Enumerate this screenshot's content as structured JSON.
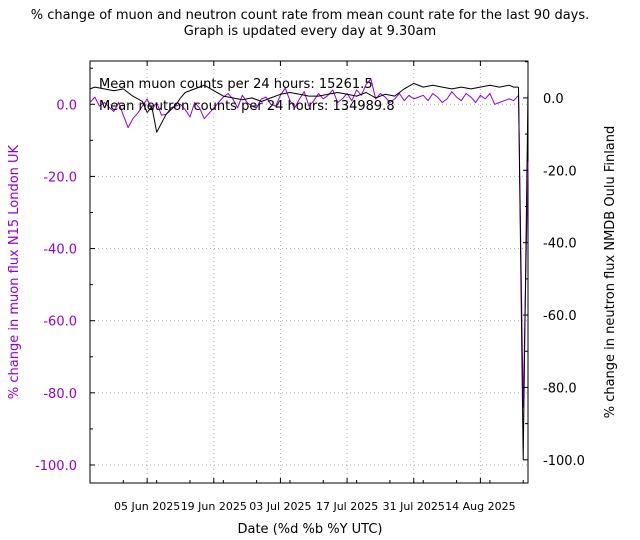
{
  "chart_data": {
    "type": "line",
    "title": "% change of muon and neutron count rate from mean count rate for the last 90 days.",
    "subtitle": "Graph is updated every day at 9.30am",
    "xlabel": "Date (%d %b %Y UTC)",
    "ylabel_left": "% change in muon flux N15 London UK",
    "ylabel_right": "% change in neutron flux NMDB Oulu Finland",
    "x_ticks": [
      "05 Jun 2025",
      "19 Jun 2025",
      "03 Jul 2025",
      "17 Jul 2025",
      "31 Jul 2025",
      "14 Aug 2025"
    ],
    "x_range": [
      "2025-05-24",
      "2025-08-24"
    ],
    "ylim_left": [
      -105,
      12
    ],
    "yticks_left": [
      "0.0",
      "-20.0",
      "-40.0",
      "-60.0",
      "-80.0",
      "-100.0"
    ],
    "ylim_right": [
      -106.4,
      10.2
    ],
    "yticks_right": [
      "0.0",
      "-20.0",
      "-40.0",
      "-60.0",
      "-80.0",
      "-100.0"
    ],
    "grid": true,
    "annotations": [
      "Mean muon counts per 24 hours: 15261.5",
      "Mean neutron counts per 24 hours: 134989.8"
    ],
    "colors": {
      "muon": "#9400d3",
      "neutron": "#000000",
      "grid": "#b0b0b0"
    },
    "series": [
      {
        "axis": "left",
        "color": "#9400d3",
        "x": [
          "2025-05-24",
          "2025-05-25",
          "2025-05-26",
          "2025-05-27",
          "2025-05-28",
          "2025-05-29",
          "2025-05-30",
          "2025-05-31",
          "2025-06-01",
          "2025-06-02",
          "2025-06-03",
          "2025-06-04",
          "2025-06-05",
          "2025-06-06",
          "2025-06-07",
          "2025-06-08",
          "2025-06-09",
          "2025-06-10",
          "2025-06-11",
          "2025-06-12",
          "2025-06-13",
          "2025-06-14",
          "2025-06-15",
          "2025-06-16",
          "2025-06-17",
          "2025-06-18",
          "2025-06-19",
          "2025-06-20",
          "2025-06-21",
          "2025-06-22",
          "2025-06-23",
          "2025-06-24",
          "2025-06-25",
          "2025-06-26",
          "2025-06-27",
          "2025-06-28",
          "2025-06-29",
          "2025-06-30",
          "2025-07-01",
          "2025-07-02",
          "2025-07-03",
          "2025-07-04",
          "2025-07-05",
          "2025-07-06",
          "2025-07-07",
          "2025-07-08",
          "2025-07-09",
          "2025-07-10",
          "2025-07-11",
          "2025-07-12",
          "2025-07-13",
          "2025-07-14",
          "2025-07-15",
          "2025-07-16",
          "2025-07-17",
          "2025-07-18",
          "2025-07-19",
          "2025-07-20",
          "2025-07-21",
          "2025-07-22",
          "2025-07-23",
          "2025-07-24",
          "2025-07-25",
          "2025-07-26",
          "2025-07-27",
          "2025-07-28",
          "2025-07-29",
          "2025-07-30",
          "2025-07-31",
          "2025-08-01",
          "2025-08-02",
          "2025-08-03",
          "2025-08-04",
          "2025-08-05",
          "2025-08-06",
          "2025-08-07",
          "2025-08-08",
          "2025-08-09",
          "2025-08-10",
          "2025-08-11",
          "2025-08-12",
          "2025-08-13",
          "2025-08-14",
          "2025-08-15",
          "2025-08-16",
          "2025-08-17",
          "2025-08-18",
          "2025-08-19",
          "2025-08-20",
          "2025-08-21",
          "2025-08-22"
        ],
        "values": [
          0.5,
          2.0,
          -0.5,
          0.5,
          -0.8,
          -2.0,
          0.5,
          -3.0,
          -6.5,
          -4.0,
          -2.5,
          -0.5,
          1.5,
          -1.5,
          0.5,
          -3.0,
          -2.8,
          -1.0,
          -0.5,
          0.0,
          -1.5,
          -3.5,
          0.5,
          -1.0,
          -4.0,
          -2.5,
          -1.0,
          0.5,
          2.0,
          3.0,
          1.5,
          -1.0,
          2.5,
          0.5,
          -0.5,
          -1.0,
          1.5,
          2.0,
          0.0,
          -0.5,
          2.5,
          4.5,
          1.0,
          -1.0,
          1.5,
          3.5,
          -0.5,
          1.0,
          3.0,
          1.5,
          2.5,
          4.0,
          0.5,
          1.5,
          3.0,
          1.0,
          4.0,
          2.5,
          5.5,
          7.0,
          1.5,
          3.0,
          2.0,
          0.5,
          1.5,
          3.0,
          1.0,
          2.5,
          1.5,
          2.0,
          2.5,
          1.0,
          3.0,
          2.0,
          0.5,
          1.5,
          3.5,
          2.0,
          1.0,
          3.0,
          2.0,
          0.5,
          2.5,
          1.5,
          3.0,
          0.0,
          0.5,
          1.0,
          1.5,
          1.0,
          2.5
        ]
      },
      {
        "axis": "left",
        "color": "#9400d3",
        "x": [
          "2025-08-22",
          "2025-08-23",
          "2025-08-24"
        ],
        "values": [
          3.0,
          -84.0,
          -16.0
        ]
      },
      {
        "axis": "right",
        "color": "#000000",
        "x": [
          "2025-05-24",
          "2025-05-25",
          "2025-05-27",
          "2025-05-29",
          "2025-05-31",
          "2025-06-02",
          "2025-06-04",
          "2025-06-05",
          "2025-06-06",
          "2025-06-07",
          "2025-06-08",
          "2025-06-09",
          "2025-06-11",
          "2025-06-12",
          "2025-06-13",
          "2025-06-15",
          "2025-06-17",
          "2025-06-19",
          "2025-06-21",
          "2025-06-23",
          "2025-06-25",
          "2025-06-27",
          "2025-06-29",
          "2025-07-01",
          "2025-07-03",
          "2025-07-05",
          "2025-07-07",
          "2025-07-09",
          "2025-07-11",
          "2025-07-13",
          "2025-07-15",
          "2025-07-17",
          "2025-07-19",
          "2025-07-21",
          "2025-07-23",
          "2025-07-25",
          "2025-07-27",
          "2025-07-29",
          "2025-07-31",
          "2025-08-02",
          "2025-08-04",
          "2025-08-06",
          "2025-08-08",
          "2025-08-10",
          "2025-08-12",
          "2025-08-14",
          "2025-08-16",
          "2025-08-18",
          "2025-08-20",
          "2025-08-21",
          "2025-08-22"
        ],
        "values": [
          2.5,
          3.0,
          2.5,
          2.0,
          2.5,
          0.5,
          -1.0,
          -4.0,
          -2.5,
          -9.5,
          -7.0,
          -4.5,
          -2.0,
          0.0,
          1.5,
          2.5,
          3.5,
          2.0,
          0.5,
          0.0,
          -0.5,
          0.0,
          -1.0,
          0.0,
          1.0,
          1.5,
          1.0,
          0.5,
          0.5,
          1.0,
          1.5,
          1.0,
          0.5,
          1.5,
          0.0,
          1.0,
          0.5,
          2.5,
          4.0,
          3.0,
          3.5,
          3.0,
          2.5,
          3.0,
          2.5,
          3.0,
          3.5,
          3.0,
          3.5,
          3.0,
          3.0
        ]
      },
      {
        "axis": "right",
        "color": "#000000",
        "x": [
          "2025-08-22",
          "2025-08-23",
          "2025-08-24"
        ],
        "values": [
          3.0,
          -100.0,
          2.5
        ]
      }
    ]
  }
}
